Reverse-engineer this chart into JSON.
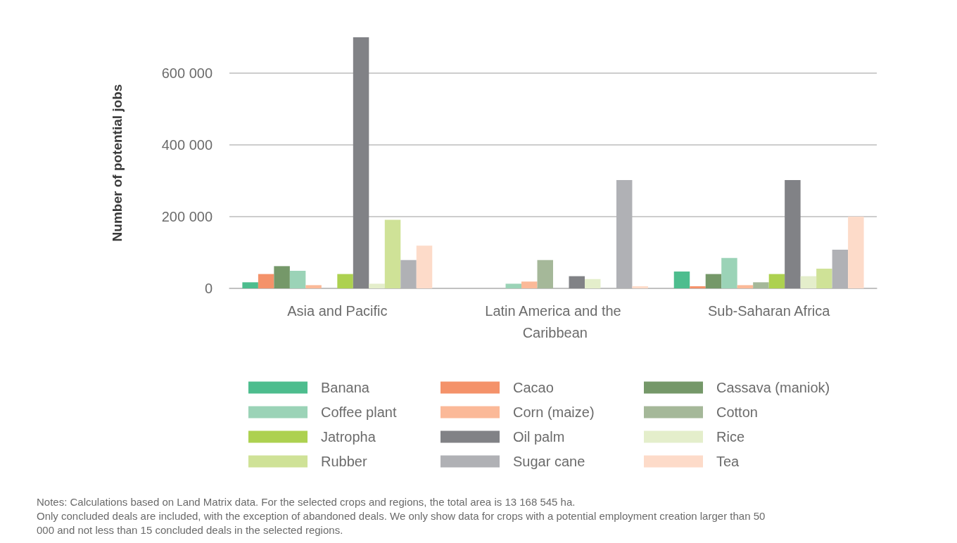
{
  "chart_data": {
    "type": "bar",
    "ylabel": "Number of potential jobs",
    "categories": [
      "Asia and Pacific",
      "Latin America and the Caribbean",
      "Sub-Saharan Africa"
    ],
    "ylim": [
      0,
      700000
    ],
    "yticks": [
      0,
      200000,
      400000,
      600000
    ],
    "grid": "y",
    "legend": "bottom",
    "series": [
      {
        "name": "Banana",
        "color": "#4dbd8e",
        "values": [
          17000,
          null,
          47000
        ]
      },
      {
        "name": "Cacao",
        "color": "#f4926a",
        "values": [
          40000,
          null,
          6000
        ]
      },
      {
        "name": "Cassava (maniok)",
        "color": "#759869",
        "values": [
          62000,
          null,
          40000
        ]
      },
      {
        "name": "Coffee plant",
        "color": "#9bd3b7",
        "values": [
          49000,
          13000,
          85000
        ]
      },
      {
        "name": "Corn (maize)",
        "color": "#fbb998",
        "values": [
          9000,
          19000,
          9000
        ]
      },
      {
        "name": "Cotton",
        "color": "#a5b899",
        "values": [
          null,
          79000,
          17000
        ]
      },
      {
        "name": "Jatropha",
        "color": "#add150",
        "values": [
          40000,
          null,
          40000
        ]
      },
      {
        "name": "Oil palm",
        "color": "#818286",
        "values": [
          700000,
          34000,
          302000
        ]
      },
      {
        "name": "Rice",
        "color": "#e4eecb",
        "values": [
          13000,
          26000,
          34000
        ]
      },
      {
        "name": "Rubber",
        "color": "#cfe297",
        "values": [
          191000,
          null,
          55000
        ]
      },
      {
        "name": "Sugar cane",
        "color": "#b0b1b5",
        "values": [
          79000,
          302000,
          108000
        ]
      },
      {
        "name": "Tea",
        "color": "#fddbc9",
        "values": [
          119000,
          6000,
          200000
        ]
      }
    ],
    "annotations": [
      "Notes: Calculations based on Land Matrix data. For the selected crops and regions, the total area is 13 168 545 ha.",
      "Only concluded deals are included, with the exception of abandoned deals. We only show data for crops with a potential employment creation larger than 50 000 and not less than 15 concluded deals in the selected regions."
    ]
  }
}
